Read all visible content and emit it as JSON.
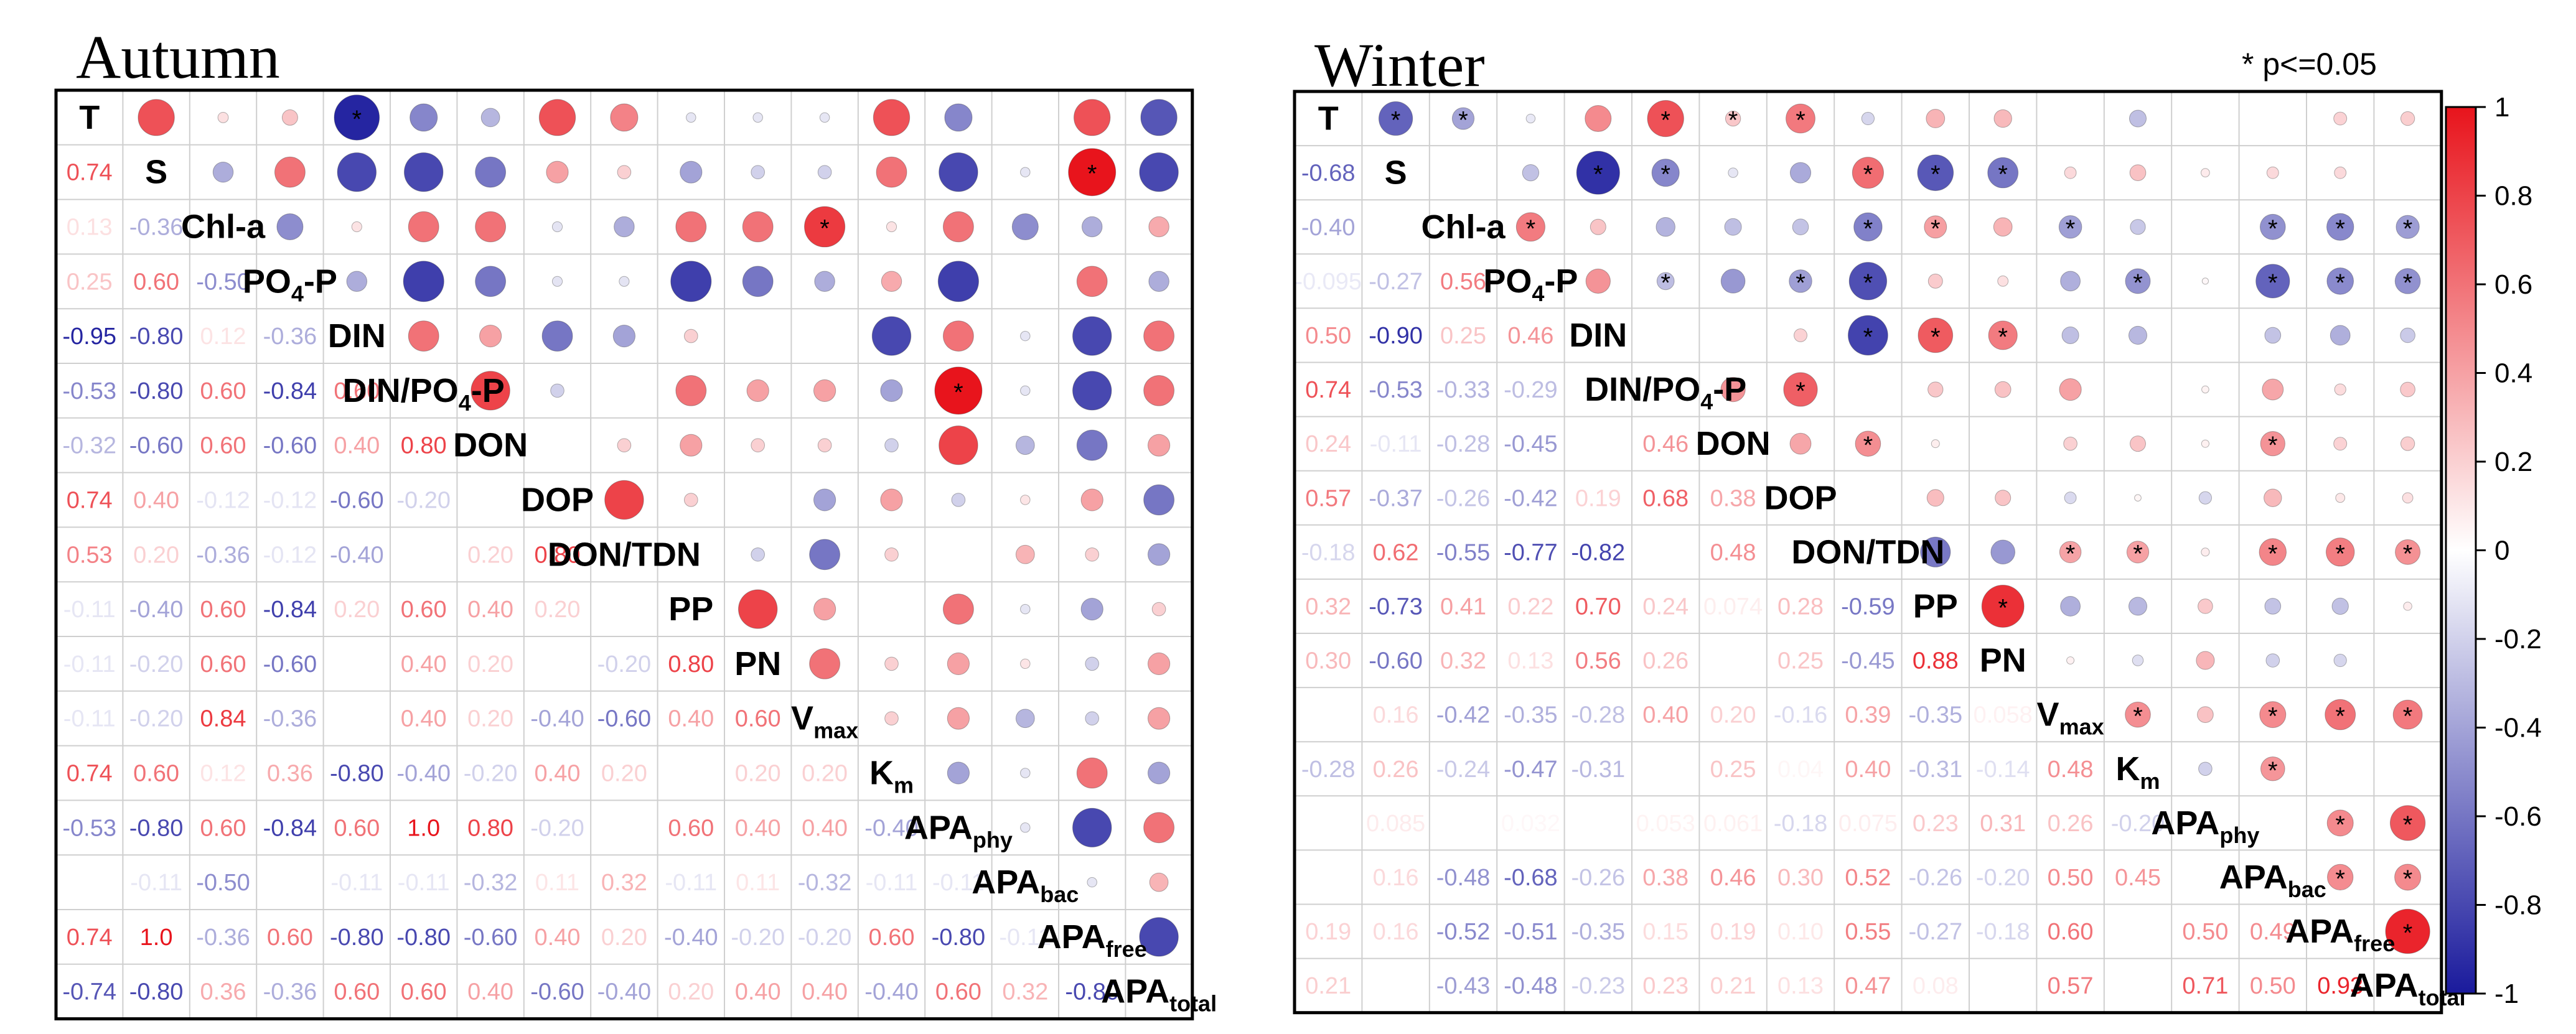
{
  "note": "* p<=0.05",
  "colors": {
    "pos": "#e8141c",
    "neg": "#1a1a9c",
    "neutral": "#ffffff"
  },
  "colorbar": {
    "ticks": [
      "1",
      "0.8",
      "0.6",
      "0.4",
      "0.2",
      "0",
      "-0.2",
      "-0.4",
      "-0.6",
      "-0.8",
      "-1"
    ]
  },
  "chart_data": [
    {
      "type": "heatmap",
      "title": "Autumn",
      "variables": [
        [
          "T"
        ],
        [
          "S"
        ],
        [
          "Chl-a"
        ],
        [
          "PO",
          "4",
          "-P"
        ],
        [
          "DIN"
        ],
        [
          "DIN/PO",
          "4",
          "-P"
        ],
        [
          "DON"
        ],
        [
          "DOP"
        ],
        [
          "DON/TDN"
        ],
        [
          "PP"
        ],
        [
          "PN"
        ],
        [
          "V",
          "max",
          ""
        ],
        [
          "K",
          "m",
          ""
        ],
        [
          "APA",
          "phy",
          ""
        ],
        [
          "APA",
          "bac",
          ""
        ],
        [
          "APA",
          "free",
          ""
        ],
        [
          "APA",
          "total",
          ""
        ]
      ],
      "matrix": [
        [
          1.0,
          0.74,
          0.13,
          0.25,
          -0.95,
          -0.53,
          -0.32,
          0.74,
          0.53,
          -0.11,
          -0.11,
          -0.11,
          0.74,
          -0.53,
          0.0,
          0.74,
          -0.74
        ],
        [
          0.74,
          1.0,
          -0.36,
          0.6,
          -0.8,
          -0.8,
          -0.6,
          0.4,
          0.2,
          -0.4,
          -0.2,
          -0.2,
          0.6,
          -0.8,
          -0.11,
          1.0,
          -0.8
        ],
        [
          0.13,
          -0.36,
          1.0,
          -0.5,
          0.12,
          0.6,
          0.6,
          -0.12,
          -0.36,
          0.6,
          0.6,
          0.84,
          0.12,
          0.6,
          -0.5,
          -0.36,
          0.36
        ],
        [
          0.25,
          0.6,
          -0.5,
          1.0,
          -0.36,
          -0.84,
          -0.6,
          -0.12,
          -0.12,
          -0.84,
          -0.6,
          -0.36,
          0.36,
          -0.84,
          0.0,
          0.6,
          -0.36
        ],
        [
          -0.95,
          -0.8,
          0.12,
          -0.36,
          1.0,
          0.6,
          0.4,
          -0.6,
          -0.4,
          0.2,
          0.0,
          0.0,
          -0.8,
          0.6,
          -0.11,
          -0.8,
          0.6
        ],
        [
          -0.53,
          -0.8,
          0.6,
          -0.84,
          0.6,
          1.0,
          0.8,
          -0.2,
          0.0,
          0.6,
          0.4,
          0.4,
          -0.4,
          1.0,
          -0.11,
          -0.8,
          0.6
        ],
        [
          -0.32,
          -0.6,
          0.6,
          -0.6,
          0.4,
          0.8,
          1.0,
          0.0,
          0.2,
          0.4,
          0.2,
          0.2,
          -0.2,
          0.8,
          -0.32,
          -0.6,
          0.4
        ],
        [
          0.74,
          0.4,
          -0.12,
          -0.12,
          -0.6,
          -0.2,
          0.0,
          1.0,
          0.8,
          0.2,
          0.0,
          -0.4,
          0.4,
          -0.2,
          0.11,
          0.4,
          -0.6
        ],
        [
          0.53,
          0.2,
          -0.36,
          -0.12,
          -0.4,
          0.0,
          0.2,
          0.8,
          1.0,
          0.0,
          -0.2,
          -0.6,
          0.2,
          0.0,
          0.32,
          0.2,
          -0.4
        ],
        [
          -0.11,
          -0.4,
          0.6,
          -0.84,
          0.2,
          0.6,
          0.4,
          0.2,
          0.0,
          1.0,
          0.8,
          0.4,
          0.0,
          0.6,
          -0.11,
          -0.4,
          0.2
        ],
        [
          -0.11,
          -0.2,
          0.6,
          -0.6,
          0.0,
          0.4,
          0.2,
          0.0,
          -0.2,
          0.8,
          1.0,
          0.6,
          0.2,
          0.4,
          0.11,
          -0.2,
          0.4
        ],
        [
          -0.11,
          -0.2,
          0.84,
          -0.36,
          0.0,
          0.4,
          0.2,
          -0.4,
          -0.6,
          0.4,
          0.6,
          1.0,
          0.2,
          0.4,
          -0.32,
          -0.2,
          0.4
        ],
        [
          0.74,
          0.6,
          0.12,
          0.36,
          -0.8,
          -0.4,
          -0.2,
          0.4,
          0.2,
          0.0,
          0.2,
          0.2,
          1.0,
          -0.4,
          -0.11,
          0.6,
          -0.4
        ],
        [
          -0.53,
          -0.8,
          0.6,
          -0.84,
          0.6,
          1.0,
          0.8,
          -0.2,
          0.0,
          0.6,
          0.4,
          0.4,
          -0.4,
          1.0,
          -0.11,
          -0.8,
          0.6
        ],
        [
          0.0,
          -0.11,
          -0.5,
          0.0,
          -0.11,
          -0.11,
          -0.32,
          0.11,
          0.32,
          -0.11,
          0.11,
          -0.32,
          -0.11,
          -0.11,
          1.0,
          -0.11,
          0.32
        ],
        [
          0.74,
          1.0,
          -0.36,
          0.6,
          -0.8,
          -0.8,
          -0.6,
          0.4,
          0.2,
          -0.4,
          -0.2,
          -0.2,
          0.6,
          -0.8,
          -0.11,
          1.0,
          -0.8
        ],
        [
          -0.74,
          -0.8,
          0.36,
          -0.36,
          0.6,
          0.6,
          0.4,
          -0.6,
          -0.4,
          0.2,
          0.4,
          0.4,
          -0.4,
          0.6,
          0.32,
          -0.8,
          1.0
        ]
      ],
      "significant": [
        [
          0,
          4
        ],
        [
          1,
          15
        ],
        [
          2,
          11
        ],
        [
          5,
          13
        ]
      ]
    },
    {
      "type": "heatmap",
      "title": "Winter",
      "variables": [
        [
          "T"
        ],
        [
          "S"
        ],
        [
          "Chl-a"
        ],
        [
          "PO",
          "4",
          "-P"
        ],
        [
          "DIN"
        ],
        [
          "DIN/PO",
          "4",
          "-P"
        ],
        [
          "DON"
        ],
        [
          "DOP"
        ],
        [
          "DON/TDN"
        ],
        [
          "PP"
        ],
        [
          "PN"
        ],
        [
          "V",
          "max",
          ""
        ],
        [
          "K",
          "m",
          ""
        ],
        [
          "APA",
          "phy",
          ""
        ],
        [
          "APA",
          "bac",
          ""
        ],
        [
          "APA",
          "free",
          ""
        ],
        [
          "APA",
          "total",
          ""
        ]
      ],
      "matrix": [
        [
          1.0,
          -0.68,
          -0.4,
          -0.095,
          0.5,
          0.74,
          0.24,
          0.57,
          -0.18,
          0.32,
          0.3,
          0.0,
          -0.28,
          0.0,
          0.0,
          0.19,
          0.21
        ],
        [
          -0.68,
          1.0,
          0.0,
          -0.27,
          -0.9,
          -0.53,
          -0.11,
          -0.37,
          0.62,
          -0.73,
          -0.6,
          0.16,
          0.26,
          0.085,
          0.16,
          0.16,
          0.0
        ],
        [
          -0.4,
          0.0,
          1.0,
          0.56,
          0.25,
          -0.33,
          -0.28,
          -0.26,
          -0.55,
          0.41,
          0.32,
          -0.42,
          -0.24,
          0.0,
          -0.48,
          -0.52,
          -0.43
        ],
        [
          -0.095,
          -0.27,
          0.56,
          1.0,
          0.46,
          -0.29,
          -0.45,
          -0.42,
          -0.77,
          0.22,
          0.13,
          -0.35,
          -0.47,
          0.032,
          -0.68,
          -0.51,
          -0.48
        ],
        [
          0.5,
          -0.9,
          0.25,
          0.46,
          1.0,
          0.0,
          0.0,
          0.19,
          -0.82,
          0.7,
          0.56,
          -0.28,
          -0.31,
          0.0,
          -0.26,
          -0.35,
          -0.23
        ],
        [
          0.74,
          -0.53,
          -0.33,
          -0.29,
          0.0,
          1.0,
          0.46,
          0.68,
          0.0,
          0.24,
          0.26,
          0.4,
          0.0,
          0.053,
          0.38,
          0.15,
          0.23
        ],
        [
          0.24,
          -0.11,
          -0.28,
          -0.45,
          0.0,
          0.46,
          1.0,
          0.38,
          0.48,
          0.074,
          0.0,
          0.2,
          0.25,
          0.061,
          0.46,
          0.19,
          0.21
        ],
        [
          0.57,
          -0.37,
          -0.26,
          -0.42,
          0.19,
          0.68,
          0.38,
          1.0,
          0.0,
          0.28,
          0.25,
          -0.16,
          0.04,
          -0.18,
          0.3,
          0.1,
          0.13
        ],
        [
          -0.18,
          0.62,
          -0.55,
          -0.77,
          -0.82,
          0.0,
          0.48,
          0.0,
          1.0,
          -0.59,
          -0.45,
          0.39,
          0.4,
          0.075,
          0.52,
          0.55,
          0.47
        ],
        [
          0.32,
          -0.73,
          0.41,
          0.22,
          0.7,
          0.24,
          0.074,
          0.28,
          -0.59,
          1.0,
          0.88,
          -0.35,
          -0.31,
          0.23,
          -0.26,
          -0.27,
          0.08
        ],
        [
          0.3,
          -0.6,
          0.32,
          0.13,
          0.56,
          0.26,
          0.0,
          0.25,
          -0.45,
          0.88,
          1.0,
          0.058,
          -0.14,
          0.31,
          -0.2,
          -0.18,
          0.0
        ],
        [
          0.0,
          0.16,
          -0.42,
          -0.35,
          -0.28,
          0.4,
          0.2,
          -0.16,
          0.39,
          -0.35,
          0.058,
          1.0,
          0.48,
          0.26,
          0.5,
          0.6,
          0.57
        ],
        [
          -0.28,
          0.26,
          -0.24,
          -0.47,
          -0.31,
          0.0,
          0.25,
          0.04,
          0.4,
          -0.31,
          -0.14,
          0.48,
          1.0,
          -0.2,
          0.45,
          0.0,
          0.0
        ],
        [
          0.0,
          0.085,
          0.0,
          0.032,
          0.0,
          0.053,
          0.061,
          -0.18,
          0.075,
          0.23,
          0.31,
          0.26,
          -0.2,
          1.0,
          0.0,
          0.5,
          0.71
        ],
        [
          0.0,
          0.16,
          -0.48,
          -0.68,
          -0.26,
          0.38,
          0.46,
          0.3,
          0.52,
          -0.26,
          -0.2,
          0.5,
          0.45,
          0.0,
          1.0,
          0.49,
          0.5
        ],
        [
          0.19,
          0.16,
          -0.52,
          -0.51,
          -0.35,
          0.15,
          0.19,
          0.1,
          0.55,
          -0.27,
          -0.18,
          0.6,
          0.0,
          0.5,
          0.49,
          1.0,
          0.93
        ],
        [
          0.21,
          0.0,
          -0.43,
          -0.48,
          -0.23,
          0.23,
          0.21,
          0.13,
          0.47,
          0.08,
          0.0,
          0.57,
          0.0,
          0.71,
          0.5,
          0.93,
          1.0
        ]
      ],
      "significant": [
        [
          0,
          1
        ],
        [
          0,
          2
        ],
        [
          0,
          5
        ],
        [
          0,
          6
        ],
        [
          0,
          7
        ],
        [
          1,
          4
        ],
        [
          1,
          5
        ],
        [
          1,
          8
        ],
        [
          1,
          9
        ],
        [
          1,
          10
        ],
        [
          2,
          3
        ],
        [
          2,
          8
        ],
        [
          2,
          9
        ],
        [
          2,
          11
        ],
        [
          2,
          14
        ],
        [
          2,
          15
        ],
        [
          2,
          16
        ],
        [
          3,
          5
        ],
        [
          3,
          7
        ],
        [
          3,
          8
        ],
        [
          3,
          12
        ],
        [
          3,
          14
        ],
        [
          3,
          15
        ],
        [
          3,
          16
        ],
        [
          4,
          8
        ],
        [
          4,
          9
        ],
        [
          4,
          10
        ],
        [
          5,
          7
        ],
        [
          6,
          8
        ],
        [
          6,
          14
        ],
        [
          8,
          11
        ],
        [
          8,
          12
        ],
        [
          8,
          14
        ],
        [
          8,
          15
        ],
        [
          8,
          16
        ],
        [
          9,
          10
        ],
        [
          11,
          12
        ],
        [
          11,
          14
        ],
        [
          11,
          15
        ],
        [
          11,
          16
        ],
        [
          12,
          14
        ],
        [
          13,
          15
        ],
        [
          13,
          16
        ],
        [
          14,
          15
        ],
        [
          14,
          16
        ],
        [
          15,
          16
        ]
      ]
    }
  ]
}
